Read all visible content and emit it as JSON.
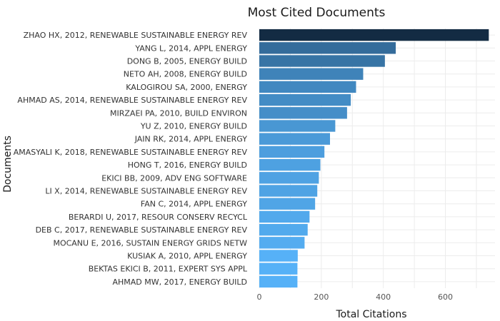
{
  "chart_data": {
    "type": "bar",
    "orientation": "horizontal",
    "title": "Most Cited Documents",
    "xlabel": "Total Citations",
    "ylabel": "Documents",
    "xlim": [
      0,
      760
    ],
    "xticks": [
      0,
      200,
      400,
      600
    ],
    "grid": true,
    "legend": "none",
    "colors": {
      "low": "#56b1f7",
      "high": "#132b43"
    },
    "categories": [
      "ZHAO HX, 2012, RENEWABLE SUSTAINABLE ENERGY REV",
      "YANG L, 2014, APPL ENERGY",
      "DONG B, 2005, ENERGY BUILD",
      "NETO AH, 2008, ENERGY BUILD",
      "KALOGIROU SA, 2000, ENERGY",
      "AHMAD AS, 2014, RENEWABLE SUSTAINABLE ENERGY REV",
      "MIRZAEI PA, 2010, BUILD ENVIRON",
      "YU Z, 2010, ENERGY BUILD",
      "JAIN RK, 2014, APPL ENERGY",
      "AMASYALI K, 2018, RENEWABLE SUSTAINABLE ENERGY REV",
      "HONG T, 2016, ENERGY BUILD",
      "EKICI BB, 2009, ADV ENG SOFTWARE",
      "LI X, 2014, RENEWABLE SUSTAINABLE ENERGY REV",
      "FAN C, 2014, APPL ENERGY",
      "BERARDI U, 2017, RESOUR CONSERV RECYCL",
      "DEB C, 2017, RENEWABLE SUSTAINABLE ENERGY REV",
      "MOCANU E, 2016, SUSTAIN ENERGY GRIDS NETW",
      "KUSIAK A, 2010, APPL ENERGY",
      "BEKTAS EKICI B, 2011, EXPERT SYS APPL",
      "AHMAD MW, 2017, ENERGY BUILD"
    ],
    "values": [
      740,
      440,
      405,
      335,
      312,
      295,
      283,
      245,
      228,
      210,
      197,
      192,
      187,
      180,
      162,
      156,
      146,
      124,
      123,
      123
    ]
  }
}
